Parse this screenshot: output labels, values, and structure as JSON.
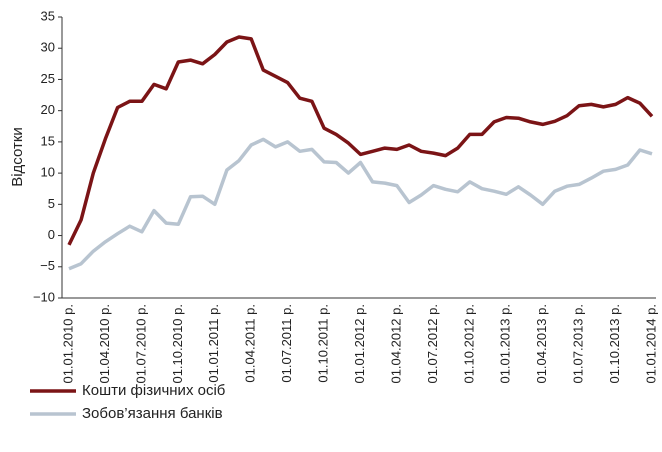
{
  "chart_data": {
    "type": "line",
    "ylabel": "Відсотки",
    "categories": [
      "01.01.2010 р.",
      null,
      null,
      "01.04.2010 р.",
      null,
      null,
      "01.07.2010 р.",
      null,
      null,
      "01.10.2010 р.",
      null,
      null,
      "01.01.2011 р.",
      null,
      null,
      "01.04.2011 р.",
      null,
      null,
      "01.07.2011 р.",
      null,
      null,
      "01.10.2011 р.",
      null,
      null,
      "01.01.2012 р.",
      null,
      null,
      "01.04.2012 р.",
      null,
      null,
      "01.07.2012 р.",
      null,
      null,
      "01.10.2012 р.",
      null,
      null,
      "01.01.2013 р.",
      null,
      null,
      "01.04.2013 р.",
      null,
      null,
      "01.07.2013 р.",
      null,
      null,
      "01.10.2013 р.",
      null,
      null,
      "01.01.2014 р."
    ],
    "series": [
      {
        "name": "Кошти фізичних осіб",
        "color": "#7b1416",
        "values": [
          -1.5,
          2.5,
          10,
          15.5,
          20.5,
          21.5,
          21.5,
          24.2,
          23.5,
          27.8,
          28.1,
          27.5,
          29,
          31,
          31.8,
          31.5,
          26.5,
          25.5,
          24.5,
          22,
          21.5,
          17.2,
          16.2,
          14.8,
          13,
          13.5,
          14,
          13.8,
          14.5,
          13.5,
          13.2,
          12.8,
          14,
          16.2,
          16.2,
          18.2,
          18.9,
          18.8,
          18.2,
          17.8,
          18.3,
          19.2,
          20.8,
          21,
          20.6,
          21,
          22.1,
          21.2,
          19.1
        ]
      },
      {
        "name": "Зобов’язання банків",
        "color": "#b8c4d0",
        "values": [
          -5.3,
          -4.5,
          -2.5,
          -1,
          0.3,
          1.5,
          0.6,
          4,
          2,
          1.8,
          6.2,
          6.3,
          5,
          10.5,
          12,
          14.5,
          15.4,
          14.2,
          15,
          13.5,
          13.8,
          11.8,
          11.7,
          10,
          11.7,
          8.6,
          8.4,
          8,
          5.3,
          6.5,
          8,
          7.4,
          7,
          8.6,
          7.5,
          7.1,
          6.6,
          7.8,
          6.5,
          5,
          7.1,
          7.9,
          8.2,
          9.2,
          10.3,
          10.6,
          11.3,
          13.7,
          13.1
        ]
      }
    ],
    "ylim": [
      -10,
      35
    ],
    "yticks": [
      {
        "value": -10,
        "label": "−10"
      },
      {
        "value": -5,
        "label": "−5"
      },
      0,
      5,
      10,
      15,
      20,
      25,
      30,
      35
    ],
    "grid": false
  }
}
